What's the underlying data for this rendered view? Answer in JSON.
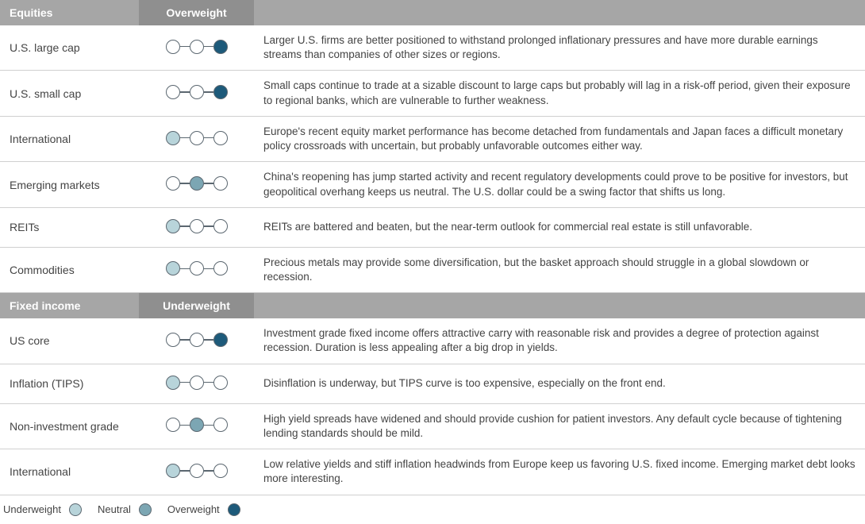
{
  "colors": {
    "underweight": "#b8d4da",
    "neutral": "#7ca6b3",
    "overweight": "#1d5a7a",
    "empty": "#ffffff",
    "dot_border": "#5b6770",
    "header_bg": "#a6a6a6",
    "header_rating_bg": "#8f8f8f",
    "row_border": "#d0d0d0",
    "text": "#444444"
  },
  "rating_scale": [
    "underweight",
    "neutral",
    "overweight"
  ],
  "sections": [
    {
      "title": "Equities",
      "rating_label": "Overweight",
      "rows": [
        {
          "name": "U.S. large cap",
          "rating": "overweight",
          "desc": "Larger U.S. firms are better positioned to withstand prolonged inflationary pressures and have more durable earnings streams than companies of other sizes or regions."
        },
        {
          "name": "U.S. small cap",
          "rating": "overweight",
          "desc": "Small caps continue to trade at a sizable discount to large caps but probably will lag in a risk-off period, given their exposure to regional banks, which are vulnerable to further weakness."
        },
        {
          "name": "International",
          "rating": "underweight",
          "desc": "Europe's recent equity market performance has become detached from fundamentals and Japan faces a difficult monetary policy crossroads with uncertain, but probably unfavorable outcomes either way."
        },
        {
          "name": "Emerging markets",
          "rating": "neutral",
          "desc": "China's reopening has jump started activity and recent regulatory developments could prove to be positive for investors, but geopolitical overhang keeps us neutral. The U.S. dollar could be a swing factor that shifts us long."
        },
        {
          "name": "REITs",
          "rating": "underweight",
          "desc": "REITs are battered and beaten, but the near-term outlook for commercial real estate is still unfavorable."
        },
        {
          "name": "Commodities",
          "rating": "underweight",
          "desc": "Precious metals may provide some diversification, but the basket approach should struggle in a global slowdown or recession."
        }
      ]
    },
    {
      "title": "Fixed income",
      "rating_label": "Underweight",
      "rows": [
        {
          "name": "US core",
          "rating": "overweight",
          "desc": "Investment grade fixed income offers attractive carry with reasonable risk and provides a degree of protection against recession. Duration is less appealing after a big drop in yields."
        },
        {
          "name": "Inflation (TIPS)",
          "rating": "underweight",
          "desc": "Disinflation is underway, but TIPS curve is too expensive, especially on the front end."
        },
        {
          "name": "Non-investment grade",
          "rating": "neutral",
          "desc": "High yield spreads have widened and should provide cushion for patient investors. Any default cycle because of tightening lending standards should be mild."
        },
        {
          "name": "International",
          "rating": "underweight",
          "desc": "Low relative yields and stiff inflation headwinds from Europe keep us favoring U.S. fixed income. Emerging market debt looks more interesting."
        }
      ]
    }
  ],
  "legend": {
    "underweight": "Underweight",
    "neutral": "Neutral",
    "overweight": "Overweight"
  }
}
